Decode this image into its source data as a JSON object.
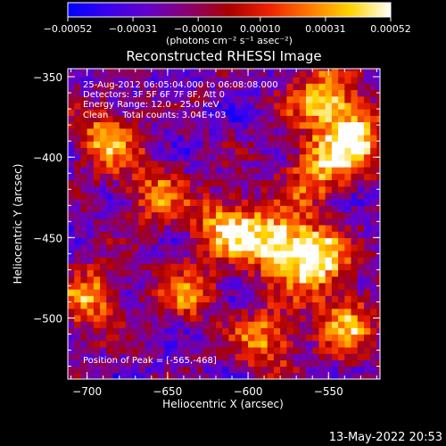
{
  "chart_data": {
    "type": "heatmap",
    "title": "Reconstructed RHESSI Image",
    "xlabel": "Heliocentric X (arcsec)",
    "ylabel": "Heliocentric Y (arcsec)",
    "xlim": [
      -712,
      -518
    ],
    "ylim": [
      -538,
      -345
    ],
    "x_ticks": [
      -700,
      -650,
      -600,
      -550
    ],
    "x_tick_labels": [
      "−700",
      "−650",
      "−600",
      "−550"
    ],
    "y_ticks": [
      -350,
      -400,
      -450,
      -500
    ],
    "y_tick_labels": [
      "−350",
      "−400",
      "−450",
      "−500"
    ],
    "colorbar": {
      "range": [
        -0.00052,
        0.00052
      ],
      "ticks": [
        -0.00052,
        -0.00031,
        -0.0001,
        0.0001,
        0.00031,
        0.00052
      ],
      "tick_labels": [
        "−0.00052",
        "−0.00031",
        "−0.00010",
        "0.00010",
        "0.00031",
        "0.00052"
      ],
      "unit_label": "(photons cm⁻² s⁻¹ asec⁻²)",
      "colormap": [
        "#0000ff",
        "#3a00ee",
        "#6600c8",
        "#8a006e",
        "#aa0000",
        "#ee2200",
        "#ff7a00",
        "#ffd400",
        "#ffffff"
      ]
    },
    "annotations": [
      "25-Aug-2012 06:05:04.000 to 06:08:08.000",
      "Detectors: 3F 5F 6F 7F 8F, Att 0",
      "Energy Range: 12.0 - 25.0 keV",
      "Clean     Total counts: 3.04E+03"
    ],
    "peak_label": "Position of Peak = [-565,-468]",
    "peak": [
      -565,
      -468
    ],
    "hot_spots": [
      {
        "x": -560,
        "y": -465,
        "value": 0.00052
      },
      {
        "x": -585,
        "y": -455,
        "value": 0.00045
      },
      {
        "x": -615,
        "y": -445,
        "value": 0.0004
      },
      {
        "x": -535,
        "y": -390,
        "value": 0.00045
      },
      {
        "x": -555,
        "y": -365,
        "value": 0.0004
      },
      {
        "x": -560,
        "y": -410,
        "value": 0.0003
      },
      {
        "x": -690,
        "y": -390,
        "value": 0.00032
      },
      {
        "x": -700,
        "y": -490,
        "value": 0.0003
      },
      {
        "x": -590,
        "y": -515,
        "value": 0.00028
      },
      {
        "x": -540,
        "y": -505,
        "value": 0.0003
      },
      {
        "x": -660,
        "y": -425,
        "value": 0.00022
      },
      {
        "x": -640,
        "y": -485,
        "value": 0.00018
      }
    ]
  },
  "footer": {
    "timestamp": "13-May-2022 20:53"
  }
}
